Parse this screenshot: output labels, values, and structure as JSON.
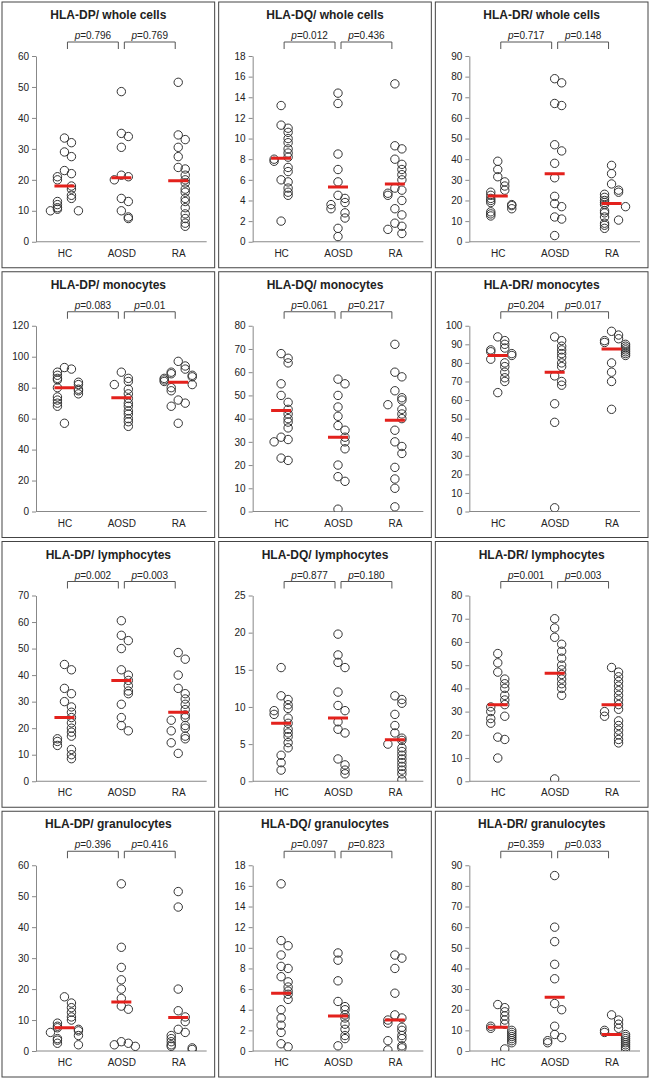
{
  "chart_data": [
    {
      "type": "scatter",
      "title": "HLA-DP/ whole cells",
      "categories": [
        "HC",
        "AOSD",
        "RA"
      ],
      "values": [
        [
          33.5,
          32,
          29,
          27.5,
          23,
          22,
          21,
          20,
          18,
          17,
          15,
          14,
          13,
          12,
          11,
          10.5,
          10,
          10
        ],
        [
          48.5,
          35,
          34,
          30.5,
          21.5,
          21,
          20,
          14,
          13,
          10,
          8,
          7.5
        ],
        [
          51.5,
          34.5,
          33,
          30.5,
          27.5,
          24,
          23.5,
          21.5,
          20,
          19,
          17,
          16,
          14,
          13,
          11,
          9,
          7.5,
          6,
          5
        ]
      ],
      "means": [
        18,
        20.7,
        19.7
      ],
      "ylim": [
        0,
        60
      ],
      "yticks": [
        0,
        10,
        20,
        30,
        40,
        50,
        60
      ],
      "comparisons": [
        {
          "label": "p=0.796",
          "groups": [
            "HC",
            "AOSD"
          ]
        },
        {
          "label": "p=0.769",
          "groups": [
            "AOSD",
            "RA"
          ]
        }
      ]
    },
    {
      "type": "scatter",
      "title": "HLA-DQ/ whole cells",
      "categories": [
        "HC",
        "AOSD",
        "RA"
      ],
      "values": [
        [
          13.2,
          11.3,
          11,
          10.6,
          10,
          9.6,
          9,
          8.6,
          8.2,
          8,
          7.8,
          7.2,
          6.8,
          6,
          5.8,
          5.2,
          4.8,
          4.5,
          2
        ],
        [
          14.4,
          13.4,
          8.5,
          7,
          5.8,
          4.5,
          4.2,
          3.8,
          3.6,
          3.2,
          2.8,
          2.3,
          1.3,
          0.5
        ],
        [
          15.3,
          9.3,
          9,
          8,
          7.5,
          7,
          6.5,
          6,
          5.2,
          5,
          4.7,
          4.5,
          4,
          3.2,
          2.6,
          1.8,
          1.5,
          1.2,
          0.8
        ]
      ],
      "means": [
        8.1,
        5.3,
        5.6
      ],
      "ylim": [
        0,
        18
      ],
      "yticks": [
        0,
        2,
        4,
        6,
        8,
        10,
        12,
        14,
        16,
        18
      ],
      "comparisons": [
        {
          "label": "p=0.012",
          "groups": [
            "HC",
            "AOSD"
          ]
        },
        {
          "label": "p=0.436",
          "groups": [
            "AOSD",
            "RA"
          ]
        }
      ]
    },
    {
      "type": "scatter",
      "title": "HLA-DR/ whole cells",
      "categories": [
        "HC",
        "AOSD",
        "RA"
      ],
      "values": [
        [
          39,
          35,
          31.5,
          29,
          27,
          25,
          24,
          22.5,
          21,
          20,
          19,
          18,
          17.5,
          16,
          14.5,
          13.5,
          12.5
        ],
        [
          79,
          77,
          67,
          66,
          47,
          44,
          38,
          31,
          22,
          18.5,
          17,
          12,
          11,
          3
        ],
        [
          37,
          33,
          28,
          25,
          24,
          23,
          21.5,
          20,
          19,
          18,
          17,
          15,
          14,
          12,
          10.5,
          9,
          8,
          6.5
        ]
      ],
      "means": [
        22.2,
        33,
        18.5
      ],
      "ylim": [
        0,
        90
      ],
      "yticks": [
        0,
        10,
        20,
        30,
        40,
        50,
        60,
        70,
        80,
        90
      ],
      "comparisons": [
        {
          "label": "p=0.717",
          "groups": [
            "HC",
            "AOSD"
          ]
        },
        {
          "label": "p=0.148",
          "groups": [
            "AOSD",
            "RA"
          ]
        }
      ]
    },
    {
      "type": "scatter",
      "title": "HLA-DP/ monocytes",
      "categories": [
        "HC",
        "AOSD",
        "RA"
      ],
      "values": [
        [
          93,
          92,
          90,
          88,
          86,
          85,
          83.5,
          82,
          80,
          79,
          78,
          76,
          74,
          72,
          70,
          68,
          57
        ],
        [
          90,
          86,
          84,
          82,
          79,
          76,
          73,
          70,
          68,
          65,
          63,
          60,
          58,
          55
        ],
        [
          97,
          94,
          92,
          90,
          89,
          88,
          87,
          86,
          85,
          84,
          82,
          80,
          78,
          72,
          70,
          68,
          57
        ]
      ],
      "means": [
        80,
        73.5,
        83.5
      ],
      "ylim": [
        0,
        120
      ],
      "yticks": [
        0,
        20,
        40,
        60,
        80,
        100,
        120
      ],
      "comparisons": [
        {
          "label": "p=0.083",
          "groups": [
            "HC",
            "AOSD"
          ]
        },
        {
          "label": "p=0.01",
          "groups": [
            "AOSD",
            "RA"
          ]
        }
      ]
    },
    {
      "type": "scatter",
      "title": "HLA-DQ/ monocytes",
      "categories": [
        "HC",
        "AOSD",
        "RA"
      ],
      "values": [
        [
          68,
          66,
          64,
          55,
          50,
          47,
          44,
          42,
          40,
          38.5,
          36,
          32,
          31,
          30,
          23,
          22
        ],
        [
          57,
          55,
          50,
          45,
          41,
          37,
          35,
          32,
          30,
          27,
          20,
          15,
          13,
          1
        ],
        [
          72,
          60,
          58,
          52,
          49,
          48,
          46,
          44,
          42,
          40,
          35,
          30,
          28,
          25,
          19,
          14,
          10,
          2
        ]
      ],
      "means": [
        43.5,
        32,
        39.3
      ],
      "ylim": [
        0,
        80
      ],
      "yticks": [
        0,
        10,
        20,
        30,
        40,
        50,
        60,
        70,
        80
      ],
      "comparisons": [
        {
          "label": "p=0.061",
          "groups": [
            "HC",
            "AOSD"
          ]
        },
        {
          "label": "p=0.217",
          "groups": [
            "AOSD",
            "RA"
          ]
        }
      ]
    },
    {
      "type": "scatter",
      "title": "HLA-DR/ monocytes",
      "categories": [
        "HC",
        "AOSD",
        "RA"
      ],
      "values": [
        [
          94,
          92,
          90,
          88,
          87,
          86,
          85,
          84,
          82,
          80,
          78,
          75,
          72,
          70,
          64
        ],
        [
          94,
          92,
          89,
          87,
          85,
          83,
          80,
          78,
          73,
          70,
          68,
          58,
          48,
          2
        ],
        [
          97,
          95,
          93,
          92,
          91,
          90,
          89,
          88,
          87,
          86,
          85,
          84,
          80,
          75,
          70,
          55
        ]
      ],
      "means": [
        84,
        75,
        87.5
      ],
      "ylim": [
        0,
        100
      ],
      "yticks": [
        0,
        10,
        20,
        30,
        40,
        50,
        60,
        70,
        80,
        90,
        100
      ],
      "comparisons": [
        {
          "label": "p=0.204",
          "groups": [
            "HC",
            "AOSD"
          ]
        },
        {
          "label": "p=0.017",
          "groups": [
            "AOSD",
            "RA"
          ]
        }
      ]
    },
    {
      "type": "scatter",
      "title": "HLA-DP/ lymphocytes",
      "categories": [
        "HC",
        "AOSD",
        "RA"
      ],
      "values": [
        [
          44,
          42,
          35,
          33,
          30,
          28,
          26,
          24,
          22,
          20,
          18.5,
          17,
          16,
          15,
          13.5,
          12,
          10,
          8.5
        ],
        [
          60.5,
          55,
          53,
          50,
          42,
          40,
          38,
          36,
          34,
          33,
          29,
          24,
          21,
          19
        ],
        [
          48.5,
          46,
          40,
          35,
          33,
          31,
          29,
          27,
          25,
          24,
          23,
          21,
          20,
          19,
          17,
          16,
          14.5,
          10.5
        ]
      ],
      "means": [
        24,
        38,
        26
      ],
      "ylim": [
        0,
        70
      ],
      "yticks": [
        0,
        10,
        20,
        30,
        40,
        50,
        60,
        70
      ],
      "comparisons": [
        {
          "label": "p=0.002",
          "groups": [
            "HC",
            "AOSD"
          ]
        },
        {
          "label": "p=0.003",
          "groups": [
            "AOSD",
            "RA"
          ]
        }
      ]
    },
    {
      "type": "scatter",
      "title": "HLA-DQ/ lymphocytes",
      "categories": [
        "HC",
        "AOSD",
        "RA"
      ],
      "values": [
        [
          15.3,
          11.5,
          11,
          10.3,
          9.8,
          9.5,
          9,
          8.5,
          7.8,
          7,
          6.5,
          6,
          5.2,
          4.5,
          3.5,
          2.5,
          1.5
        ],
        [
          19.8,
          17,
          16,
          15.3,
          12,
          10.2,
          9.5,
          8,
          7,
          6.5,
          3,
          2.2,
          1.5,
          1
        ],
        [
          11.5,
          11,
          10.5,
          9,
          7.5,
          6.5,
          5.8,
          5.5,
          5,
          4.5,
          4,
          3.5,
          3,
          2.5,
          2,
          1.5,
          1,
          0.2
        ]
      ],
      "means": [
        7.8,
        8.5,
        5.6
      ],
      "ylim": [
        0,
        25
      ],
      "yticks": [
        0,
        5,
        10,
        15,
        20,
        25
      ],
      "comparisons": [
        {
          "label": "p=0.877",
          "groups": [
            "HC",
            "AOSD"
          ]
        },
        {
          "label": "p=0.180",
          "groups": [
            "AOSD",
            "RA"
          ]
        }
      ]
    },
    {
      "type": "scatter",
      "title": "HLA-DR/ lymphocytes",
      "categories": [
        "HC",
        "AOSD",
        "RA"
      ],
      "values": [
        [
          55,
          51,
          47,
          44,
          42,
          40,
          37,
          35,
          33,
          32,
          30,
          28,
          27,
          25,
          19,
          18,
          10
        ],
        [
          70,
          66,
          62,
          59,
          56,
          53,
          50,
          48,
          46,
          44,
          42,
          40,
          37,
          1
        ],
        [
          49,
          47,
          45,
          43,
          41,
          39,
          37,
          35,
          33,
          31,
          30,
          28,
          26,
          24,
          22,
          20,
          18,
          16.5
        ]
      ],
      "means": [
        33,
        46.5,
        33
      ],
      "ylim": [
        0,
        80
      ],
      "yticks": [
        0,
        10,
        20,
        30,
        40,
        50,
        60,
        70,
        80
      ],
      "comparisons": [
        {
          "label": "p=0.001",
          "groups": [
            "HC",
            "AOSD"
          ]
        },
        {
          "label": "p=0.003",
          "groups": [
            "AOSD",
            "RA"
          ]
        }
      ]
    },
    {
      "type": "scatter",
      "title": "HLA-DP/ granulocytes",
      "categories": [
        "HC",
        "AOSD",
        "RA"
      ],
      "values": [
        [
          17.5,
          15.5,
          14,
          12.5,
          11,
          10,
          9,
          8,
          7.5,
          7,
          6.5,
          6,
          5,
          4,
          3.5,
          2.5,
          2
        ],
        [
          54,
          33.5,
          27,
          23,
          20,
          17,
          14.5,
          13.5,
          3,
          2.5,
          2,
          1.5
        ],
        [
          51.5,
          46.5,
          20,
          13,
          11,
          9.5,
          7,
          6,
          5,
          4,
          3,
          2,
          1.5,
          1,
          0.5
        ]
      ],
      "means": [
        7.5,
        15.8,
        10.8
      ],
      "ylim": [
        0,
        60
      ],
      "yticks": [
        0,
        10,
        20,
        30,
        40,
        50,
        60
      ],
      "comparisons": [
        {
          "label": "p=0.396",
          "groups": [
            "HC",
            "AOSD"
          ]
        },
        {
          "label": "p=0.416",
          "groups": [
            "AOSD",
            "RA"
          ]
        }
      ]
    },
    {
      "type": "scatter",
      "title": "HLA-DQ/ granulocytes",
      "categories": [
        "HC",
        "AOSD",
        "RA"
      ],
      "values": [
        [
          16.2,
          10.7,
          10.2,
          9.3,
          8.2,
          8,
          7.2,
          6.7,
          6.2,
          5.8,
          5.5,
          5,
          4,
          3.2,
          2.5,
          1.8,
          0.7,
          0.4
        ],
        [
          9.5,
          8.8,
          6.8,
          4.8,
          4.3,
          4,
          3.5,
          3.2,
          2.6,
          2.1,
          1.5,
          1.2,
          0.5
        ],
        [
          9.3,
          9,
          8,
          5.6,
          3.5,
          3.2,
          3,
          2.7,
          2.3,
          2,
          1.5,
          1.2,
          1,
          0.5,
          0.3,
          0.1
        ]
      ],
      "means": [
        5.6,
        3.4,
        3
      ],
      "ylim": [
        0,
        18
      ],
      "yticks": [
        0,
        2,
        4,
        6,
        8,
        10,
        12,
        14,
        16,
        18
      ],
      "comparisons": [
        {
          "label": "p=0.097",
          "groups": [
            "HC",
            "AOSD"
          ]
        },
        {
          "label": "p=0.823",
          "groups": [
            "AOSD",
            "RA"
          ]
        }
      ]
    },
    {
      "type": "scatter",
      "title": "HLA-DR/ granulocytes",
      "categories": [
        "HC",
        "AOSD",
        "RA"
      ],
      "values": [
        [
          22.5,
          21,
          19,
          17,
          15,
          13,
          12,
          11,
          10,
          9,
          8,
          7,
          6,
          5,
          4,
          1
        ],
        [
          85,
          60,
          53,
          42,
          35,
          23,
          20,
          12,
          8,
          6.5,
          5,
          4
        ],
        [
          17.5,
          15,
          13,
          11,
          10,
          9,
          8,
          7,
          6,
          5,
          4,
          3,
          2,
          1
        ]
      ],
      "means": [
        11.5,
        26,
        8
      ],
      "ylim": [
        0,
        90
      ],
      "yticks": [
        0,
        10,
        20,
        30,
        40,
        50,
        60,
        70,
        80,
        90
      ],
      "comparisons": [
        {
          "label": "p=0.359",
          "groups": [
            "HC",
            "AOSD"
          ]
        },
        {
          "label": "p=0.033",
          "groups": [
            "AOSD",
            "RA"
          ]
        }
      ]
    }
  ]
}
